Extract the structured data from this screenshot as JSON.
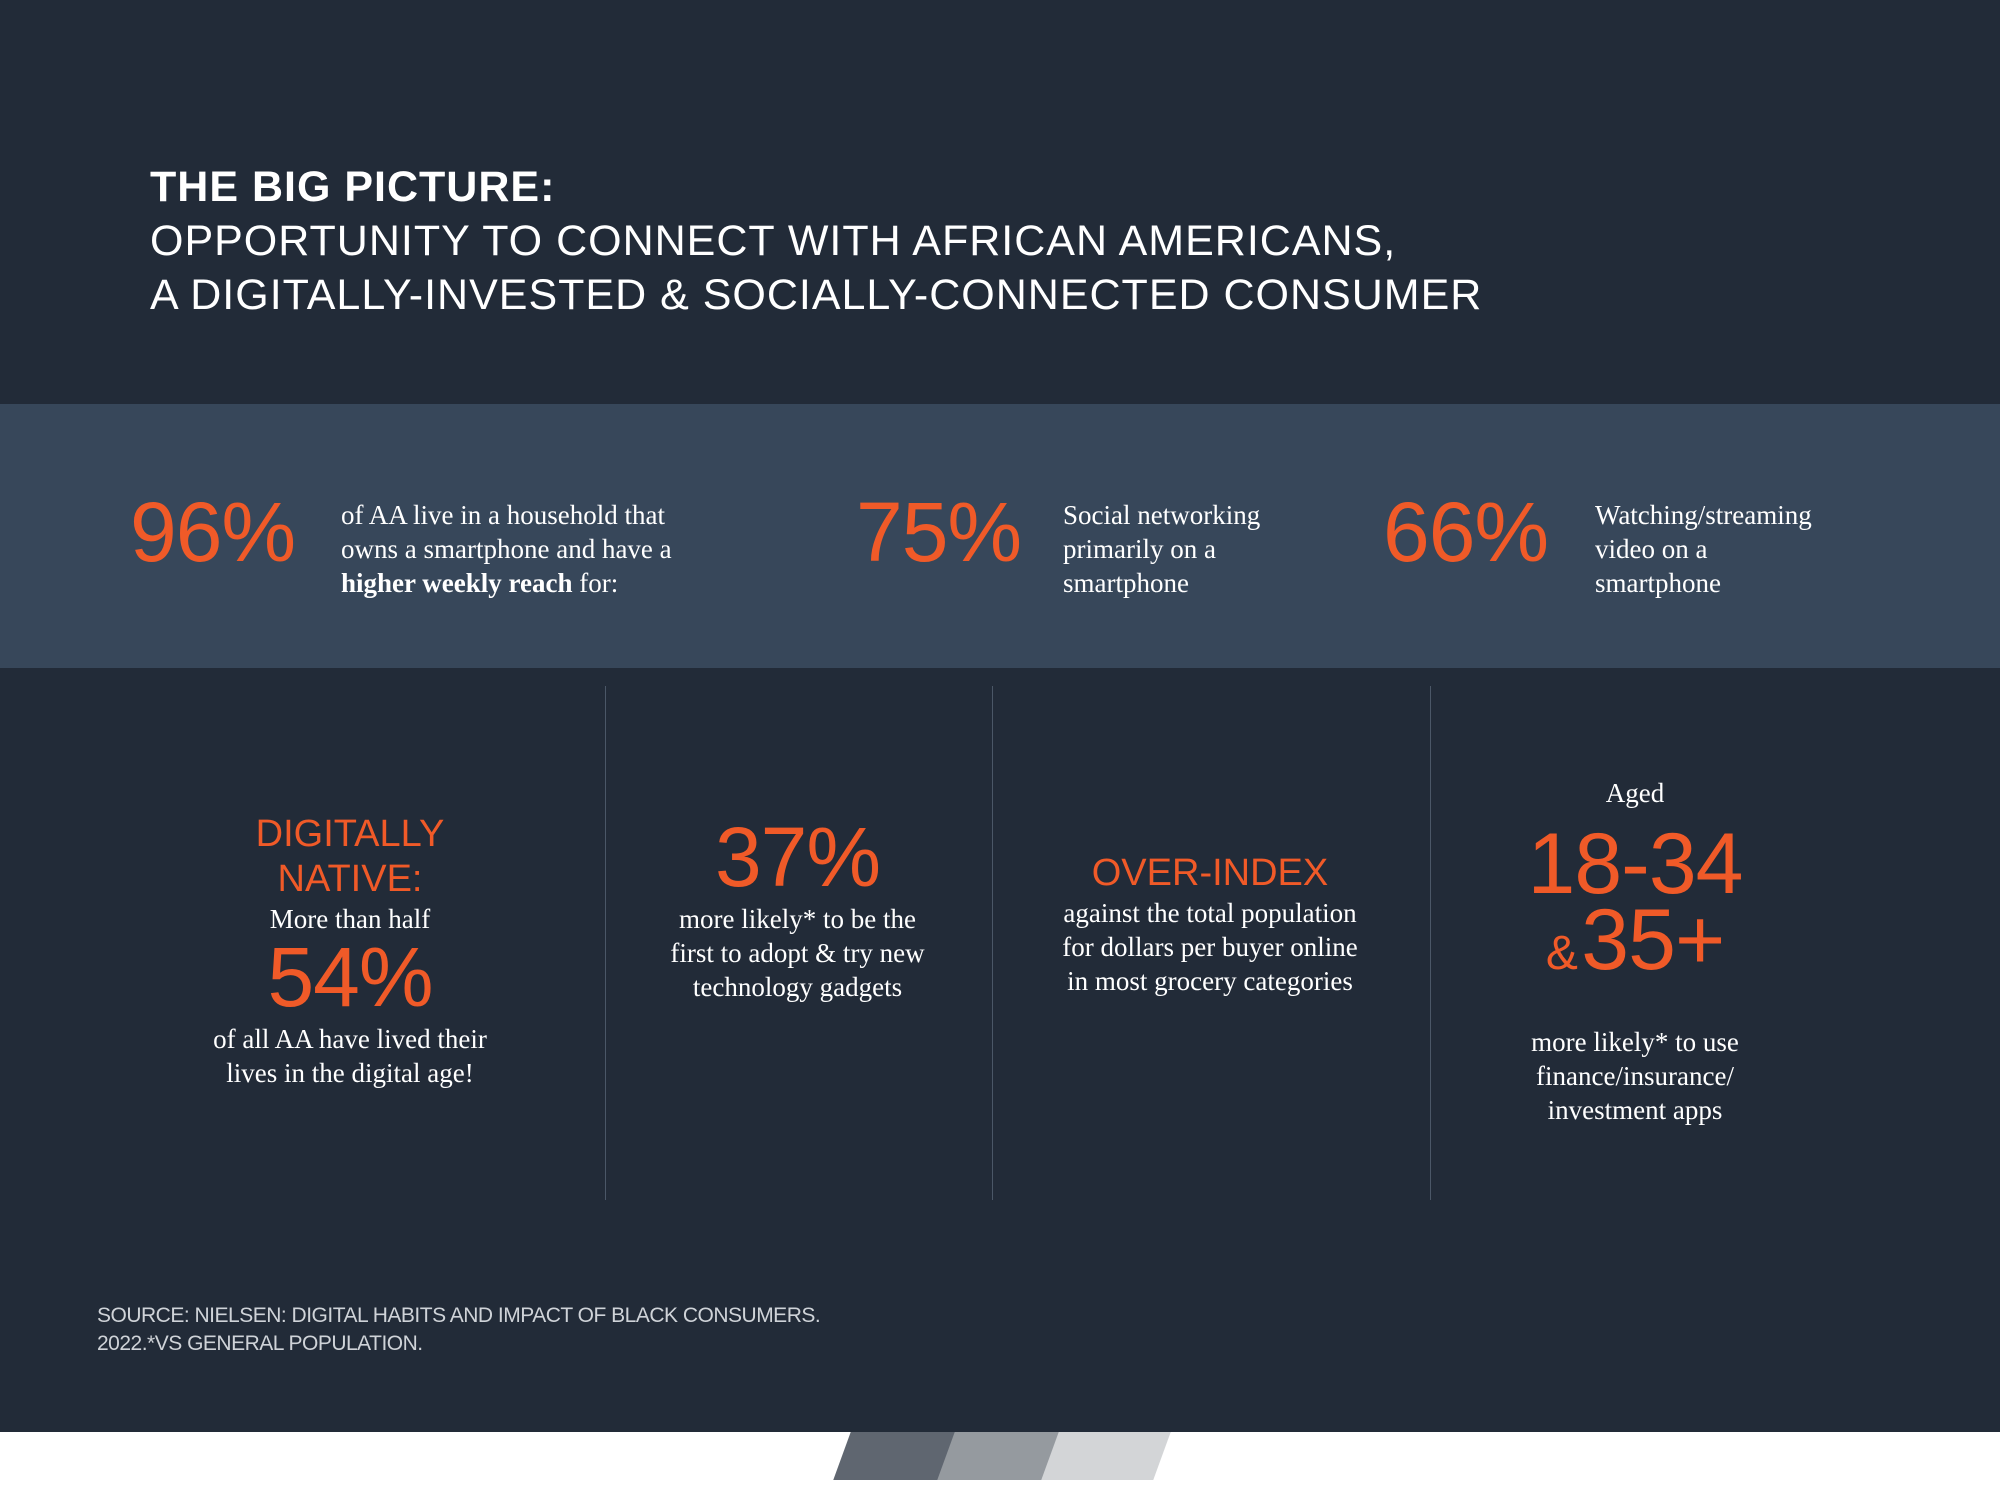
{
  "header": {
    "line1": "THE BIG PICTURE:",
    "line2": "OPPORTUNITY TO CONNECT WITH AFRICAN AMERICANS,",
    "line3": "A DIGITALLY-INVESTED & SOCIALLY-CONNECTED CONSUMER"
  },
  "band": {
    "stat1": {
      "value": "96%",
      "line1": "of AA live in a household that",
      "line2": "owns a smartphone and have a",
      "bold": "higher weekly reach",
      "tail": " for:"
    },
    "stat2": {
      "value": "75%",
      "lines": [
        "Social networking",
        "primarily on a",
        "smartphone"
      ]
    },
    "stat3": {
      "value": "66%",
      "lines": [
        "Watching/streaming",
        "video on a",
        "smartphone"
      ]
    }
  },
  "columns": {
    "c1": {
      "heading1": "DIGITALLY",
      "heading2": "NATIVE:",
      "sub": "More than half",
      "value": "54%",
      "lines": [
        "of all AA have lived their",
        "lives in the digital age!"
      ]
    },
    "c2": {
      "value": "37%",
      "lines": [
        "more likely* to be the",
        "first to adopt & try new",
        "technology gadgets"
      ]
    },
    "c3": {
      "heading": "OVER-INDEX",
      "lines": [
        "against the total population",
        "for dollars per buyer online",
        "in most grocery categories"
      ]
    },
    "c4": {
      "pre": "Aged",
      "value1": "18-34",
      "amp": "&",
      "value2": "35+",
      "lines": [
        "more likely* to use",
        "finance/insurance/",
        "investment apps"
      ]
    }
  },
  "source": {
    "line1": "SOURCE: NIELSEN: DIGITAL HABITS AND IMPACT OF BLACK CONSUMERS.",
    "line2": "2022.*VS GENERAL POPULATION."
  },
  "colors": {
    "background": "#222b38",
    "band": "#37475a",
    "accent": "#f05a28"
  }
}
